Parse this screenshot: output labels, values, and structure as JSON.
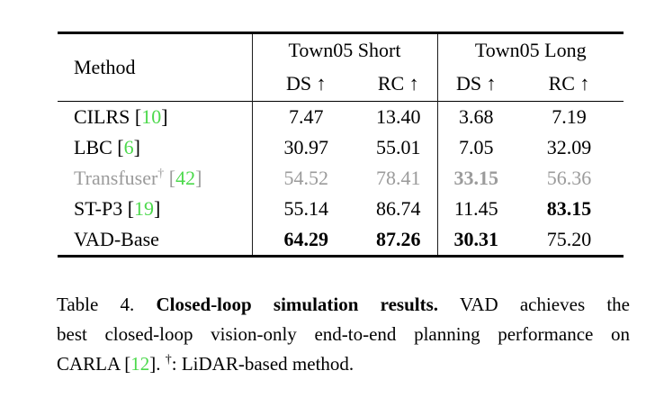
{
  "colors": {
    "text": "#000000",
    "deemphasized_row_gray": "#9b9b9b",
    "citation_green": "#4cd94c",
    "rule_black": "#000000"
  },
  "table": {
    "header": {
      "method_label": "Method",
      "groups": [
        {
          "label": "Town05 Short"
        },
        {
          "label": "Town05 Long"
        }
      ],
      "metrics": [
        "DS ↑",
        "RC ↑",
        "DS ↑",
        "RC ↑"
      ]
    },
    "rows": [
      {
        "method": {
          "prefix": "CILRS",
          "sup": "",
          "mid": " [",
          "cite": "10",
          "suffix": "]"
        },
        "values": [
          "7.47",
          "13.40",
          "3.68",
          "7.19"
        ]
      },
      {
        "method": {
          "prefix": "LBC",
          "sup": "",
          "mid": " [",
          "cite": "6",
          "suffix": "]"
        },
        "values": [
          "30.97",
          "55.01",
          "7.05",
          "32.09"
        ]
      },
      {
        "method": {
          "prefix": "Transfuser",
          "sup": "†",
          "mid": " [",
          "cite": "42",
          "suffix": "]"
        },
        "values": [
          "54.52",
          "78.41",
          "33.15",
          "56.36"
        ]
      },
      {
        "method": {
          "prefix": "ST-P3",
          "sup": "",
          "mid": " [",
          "cite": "19",
          "suffix": "]"
        },
        "values": [
          "55.14",
          "86.74",
          "11.45",
          "83.15"
        ]
      },
      {
        "method": {
          "prefix": "VAD-Base",
          "sup": "",
          "mid": "",
          "cite": "",
          "suffix": ""
        },
        "values": [
          "64.29",
          "87.26",
          "30.31",
          "75.20"
        ]
      }
    ]
  },
  "caption": {
    "line1": {
      "prefix": "Table 4.  ",
      "bold": "Closed-loop simulation results.",
      "suffix": "  VAD achieves the"
    },
    "line2": "best closed-loop vision-only end-to-end planning performance on",
    "line3": {
      "prefix": "CARLA [",
      "cite": "12",
      "mid": "]. ",
      "sup": "†",
      "suffix": ": LiDAR-based method."
    }
  }
}
